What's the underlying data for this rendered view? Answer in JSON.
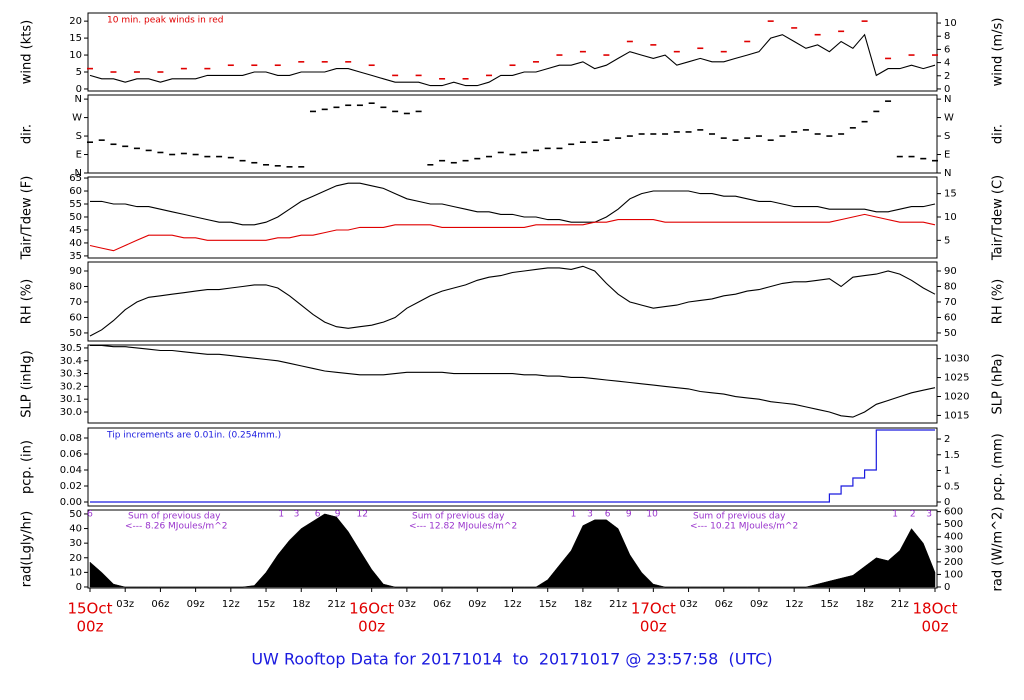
{
  "time_axis": {
    "xlim": [
      -0.17,
      72.17
    ],
    "x": [
      0,
      1,
      2,
      3,
      4,
      5,
      6,
      7,
      8,
      9,
      10,
      11,
      12,
      13,
      14,
      15,
      16,
      17,
      18,
      19,
      20,
      21,
      22,
      23,
      24,
      25,
      26,
      27,
      28,
      29,
      30,
      31,
      32,
      33,
      34,
      35,
      36,
      37,
      38,
      39,
      40,
      41,
      42,
      43,
      44,
      45,
      46,
      47,
      48,
      49,
      50,
      51,
      52,
      53,
      54,
      55,
      56,
      57,
      58,
      59,
      60,
      61,
      62,
      63,
      64,
      65,
      66,
      67,
      68,
      69,
      70,
      71,
      72
    ],
    "xticks": [
      {
        "value": 0,
        "label": "00z"
      },
      {
        "value": 3,
        "label": "03z"
      },
      {
        "value": 6,
        "label": "06z"
      },
      {
        "value": 9,
        "label": "09z"
      },
      {
        "value": 12,
        "label": "12z"
      },
      {
        "value": 15,
        "label": "15z"
      },
      {
        "value": 18,
        "label": "18z"
      },
      {
        "value": 21,
        "label": "21z"
      },
      {
        "value": 24,
        "label": "00z"
      },
      {
        "value": 27,
        "label": "03z"
      },
      {
        "value": 30,
        "label": "06z"
      },
      {
        "value": 33,
        "label": "09z"
      },
      {
        "value": 36,
        "label": "12z"
      },
      {
        "value": 39,
        "label": "15z"
      },
      {
        "value": 42,
        "label": "18z"
      },
      {
        "value": 45,
        "label": "21z"
      },
      {
        "value": 48,
        "label": "00z"
      },
      {
        "value": 51,
        "label": "03z"
      },
      {
        "value": 54,
        "label": "06z"
      },
      {
        "value": 57,
        "label": "09z"
      },
      {
        "value": 60,
        "label": "12z"
      },
      {
        "value": 63,
        "label": "15z"
      },
      {
        "value": 66,
        "label": "18z"
      },
      {
        "value": 69,
        "label": "21z"
      },
      {
        "value": 72,
        "label": "00z"
      }
    ],
    "date_labels": [
      {
        "value": 0,
        "label": "15Oct"
      },
      {
        "value": 24,
        "label": "16Oct"
      },
      {
        "value": 48,
        "label": "17Oct"
      },
      {
        "value": 72,
        "label": "18Oct"
      }
    ]
  },
  "footer": "UW Rooftop Data for 20171014  to  20171017 @ 23:57:58  (UTC)",
  "chart_data": [
    {
      "type": "line",
      "ylabel": "wind (kts)",
      "y2label": "wind (m/s)",
      "ylim": [
        -0.6,
        22.4
      ],
      "yticks": [
        0,
        5,
        10,
        15,
        20
      ],
      "y2lim": [
        -0.31,
        11.52
      ],
      "y2ticks": [
        0,
        2,
        4,
        6,
        8,
        10
      ],
      "note": "10 min. peak winds in red",
      "note_color": "#e00000",
      "series": [
        {
          "color": "#000000",
          "values": [
            4,
            3,
            3,
            2,
            3,
            3,
            2,
            3,
            3,
            3,
            4,
            4,
            4,
            4,
            5,
            5,
            4,
            4,
            5,
            5,
            5,
            6,
            6,
            5,
            4,
            3,
            2,
            2,
            2,
            1,
            1,
            2,
            1,
            1,
            2,
            4,
            4,
            5,
            5,
            6,
            7,
            7,
            8,
            6,
            7,
            9,
            11,
            10,
            9,
            10,
            7,
            8,
            9,
            8,
            8,
            9,
            10,
            11,
            15,
            16,
            14,
            12,
            13,
            11,
            14,
            12,
            16,
            4,
            6,
            6,
            7,
            6,
            7
          ]
        },
        {
          "type": "scatter",
          "color": "#e00000",
          "x": [
            0,
            2,
            4,
            6,
            8,
            10,
            12,
            14,
            16,
            18,
            20,
            22,
            24,
            26,
            28,
            30,
            32,
            34,
            36,
            38,
            40,
            42,
            44,
            46,
            48,
            50,
            52,
            54,
            56,
            58,
            60,
            62,
            64,
            66,
            68,
            70,
            72
          ],
          "values": [
            6,
            5,
            5,
            5,
            6,
            6,
            7,
            7,
            7,
            8,
            8,
            8,
            7,
            4,
            4,
            3,
            3,
            4,
            7,
            8,
            10,
            11,
            10,
            14,
            13,
            11,
            12,
            11,
            14,
            20,
            18,
            16,
            17,
            20,
            9,
            10,
            10
          ]
        }
      ]
    },
    {
      "type": "scatter",
      "ylabel": "dir.",
      "y2label": "dir.",
      "ylim": [
        0,
        380
      ],
      "yticks": [
        {
          "value": 0,
          "label": "N"
        },
        {
          "value": 90,
          "label": "E"
        },
        {
          "value": 180,
          "label": "S"
        },
        {
          "value": 270,
          "label": "W"
        },
        {
          "value": 360,
          "label": "N"
        }
      ],
      "series": [
        {
          "color": "#000000",
          "values": [
            150,
            160,
            140,
            130,
            120,
            110,
            100,
            90,
            95,
            90,
            80,
            80,
            75,
            60,
            50,
            40,
            35,
            30,
            30,
            300,
            310,
            320,
            330,
            330,
            340,
            320,
            300,
            290,
            300,
            40,
            60,
            50,
            60,
            70,
            80,
            100,
            90,
            100,
            110,
            120,
            120,
            140,
            150,
            150,
            160,
            170,
            180,
            190,
            190,
            190,
            200,
            200,
            210,
            190,
            170,
            160,
            170,
            180,
            160,
            180,
            200,
            210,
            190,
            180,
            190,
            220,
            250,
            300,
            350,
            80,
            80,
            70,
            60
          ]
        }
      ]
    },
    {
      "type": "line",
      "ylabel": "Tair/Tdew (F)",
      "y2label": "Tair/Tdew (C)",
      "ylim": [
        34.2,
        65.4
      ],
      "yticks": [
        35,
        40,
        45,
        50,
        55,
        60,
        65
      ],
      "y2lim": [
        1.22,
        18.56
      ],
      "y2ticks": [
        5,
        10,
        15
      ],
      "series": [
        {
          "color": "#000000",
          "values": [
            56,
            56,
            55,
            55,
            54,
            54,
            53,
            52,
            51,
            50,
            49,
            48,
            48,
            47,
            47,
            48,
            50,
            53,
            56,
            58,
            60,
            62,
            63,
            63,
            62,
            61,
            59,
            57,
            56,
            55,
            55,
            54,
            53,
            52,
            52,
            51,
            51,
            50,
            50,
            49,
            49,
            48,
            48,
            48,
            50,
            53,
            57,
            59,
            60,
            60,
            60,
            60,
            59,
            59,
            58,
            58,
            57,
            56,
            56,
            55,
            54,
            54,
            54,
            53,
            53,
            53,
            53,
            52,
            52,
            53,
            54,
            54,
            55
          ]
        },
        {
          "color": "#e00000",
          "values": [
            39,
            38,
            37,
            39,
            41,
            43,
            43,
            43,
            42,
            42,
            41,
            41,
            41,
            41,
            41,
            41,
            42,
            42,
            43,
            43,
            44,
            45,
            45,
            46,
            46,
            46,
            47,
            47,
            47,
            47,
            46,
            46,
            46,
            46,
            46,
            46,
            46,
            46,
            47,
            47,
            47,
            47,
            47,
            48,
            48,
            49,
            49,
            49,
            49,
            48,
            48,
            48,
            48,
            48,
            48,
            48,
            48,
            48,
            48,
            48,
            48,
            48,
            48,
            48,
            49,
            50,
            51,
            50,
            49,
            48,
            48,
            48,
            47
          ]
        }
      ]
    },
    {
      "type": "line",
      "ylabel": "RH (%)",
      "y2label": "RH (%)",
      "ylim": [
        44.8,
        95.8
      ],
      "yticks": [
        50,
        60,
        70,
        80,
        90
      ],
      "series": [
        {
          "color": "#000000",
          "values": [
            48,
            52,
            58,
            65,
            70,
            73,
            74,
            75,
            76,
            77,
            78,
            78,
            79,
            80,
            81,
            81,
            79,
            74,
            68,
            62,
            57,
            54,
            53,
            54,
            55,
            57,
            60,
            66,
            70,
            74,
            77,
            79,
            81,
            84,
            86,
            87,
            89,
            90,
            91,
            92,
            92,
            91,
            93,
            90,
            82,
            75,
            70,
            68,
            66,
            67,
            68,
            70,
            71,
            72,
            74,
            75,
            77,
            78,
            80,
            82,
            83,
            83,
            84,
            85,
            80,
            86,
            87,
            88,
            90,
            88,
            84,
            79,
            75
          ]
        }
      ]
    },
    {
      "type": "line",
      "ylabel": "SLP (inHg)",
      "y2label": "SLP (hPa)",
      "ylim": [
        29.914,
        30.523
      ],
      "yticks": [
        {
          "value": 30,
          "label": "30.0"
        },
        30.1,
        30.2,
        30.3,
        30.4,
        30.5
      ],
      "y2lim": [
        1013.0,
        1033.6
      ],
      "y2ticks": [
        1015,
        1020,
        1025,
        1030
      ],
      "series": [
        {
          "color": "#000000",
          "values": [
            30.52,
            30.52,
            30.51,
            30.51,
            30.5,
            30.49,
            30.48,
            30.48,
            30.47,
            30.46,
            30.45,
            30.45,
            30.44,
            30.43,
            30.42,
            30.41,
            30.4,
            30.38,
            30.36,
            30.34,
            30.32,
            30.31,
            30.3,
            30.29,
            30.29,
            30.29,
            30.3,
            30.31,
            30.31,
            30.31,
            30.31,
            30.3,
            30.3,
            30.3,
            30.3,
            30.3,
            30.3,
            30.29,
            30.29,
            30.28,
            30.28,
            30.27,
            30.27,
            30.26,
            30.25,
            30.24,
            30.23,
            30.22,
            30.21,
            30.2,
            30.19,
            30.18,
            30.16,
            30.15,
            30.14,
            30.12,
            30.11,
            30.1,
            30.08,
            30.07,
            30.06,
            30.04,
            30.02,
            30.0,
            29.97,
            29.96,
            30.0,
            30.06,
            30.09,
            30.12,
            30.15,
            30.17,
            30.19
          ]
        }
      ]
    },
    {
      "type": "step",
      "ylabel": "pcp. (in)",
      "y2label": "pcp. (mm)",
      "ylim": [
        -0.005,
        0.0925
      ],
      "yticks": [
        {
          "value": 0,
          "label": "0.00"
        },
        {
          "value": 0.02,
          "label": "0.02"
        },
        {
          "value": 0.04,
          "label": "0.04"
        },
        {
          "value": 0.06,
          "label": "0.06"
        },
        {
          "value": 0.08,
          "label": "0.08"
        }
      ],
      "y2lim": [
        -0.127,
        2.35
      ],
      "y2ticks": [
        0,
        0.5,
        1,
        1.5,
        2
      ],
      "note": "Tip increments are 0.01in. (0.254mm.)",
      "note_color": "#1a1adf",
      "series": [
        {
          "color": "#1a1adf",
          "values": [
            0,
            0,
            0,
            0,
            0,
            0,
            0,
            0,
            0,
            0,
            0,
            0,
            0,
            0,
            0,
            0,
            0,
            0,
            0,
            0,
            0,
            0,
            0,
            0,
            0,
            0,
            0,
            0,
            0,
            0,
            0,
            0,
            0,
            0,
            0,
            0,
            0,
            0,
            0,
            0,
            0,
            0,
            0,
            0,
            0,
            0,
            0,
            0,
            0,
            0,
            0,
            0,
            0,
            0,
            0,
            0,
            0,
            0,
            0,
            0,
            0,
            0,
            0,
            0.01,
            0.02,
            0.03,
            0.04,
            0.09,
            0.09,
            0.09,
            0.09,
            0.09,
            0.09
          ]
        }
      ]
    },
    {
      "type": "area",
      "ylabel": "rad(Lgly/hr)",
      "y2label": "rad (W/m^2)",
      "ylim": [
        -0.7,
        52.7
      ],
      "yticks": [
        0,
        10,
        20,
        30,
        40,
        50
      ],
      "y2lim": [
        -8.1,
        613
      ],
      "y2ticks": [
        0,
        100,
        200,
        300,
        400,
        500,
        600
      ],
      "series": [
        {
          "color": "#000000",
          "values": [
            17,
            10,
            2,
            0,
            0,
            0,
            0,
            0,
            0,
            0,
            0,
            0,
            0,
            0,
            1,
            10,
            22,
            32,
            40,
            45,
            50,
            48,
            38,
            25,
            12,
            2,
            0,
            0,
            0,
            0,
            0,
            0,
            0,
            0,
            0,
            0,
            0,
            0,
            0,
            5,
            15,
            25,
            42,
            46,
            46,
            40,
            22,
            10,
            2,
            0,
            0,
            0,
            0,
            0,
            0,
            0,
            0,
            0,
            0,
            0,
            0,
            0,
            2,
            4,
            6,
            8,
            14,
            20,
            18,
            25,
            40,
            30,
            10
          ]
        }
      ],
      "hour_marks": [
        {
          "value": 0,
          "label": "6"
        },
        {
          "value": 16.3,
          "label": "1"
        },
        {
          "value": 17.6,
          "label": "3"
        },
        {
          "value": 19.4,
          "label": "6"
        },
        {
          "value": 21.1,
          "label": "9"
        },
        {
          "value": 23.2,
          "label": "12"
        },
        {
          "value": 41.2,
          "label": "1"
        },
        {
          "value": 42.6,
          "label": "3"
        },
        {
          "value": 44.1,
          "label": "6"
        },
        {
          "value": 45.9,
          "label": "9"
        },
        {
          "value": 47.9,
          "label": "10"
        },
        {
          "value": 68.6,
          "label": "1"
        },
        {
          "value": 70.1,
          "label": "2"
        },
        {
          "value": 71.5,
          "label": "3"
        }
      ],
      "daily_sums": [
        {
          "title": "Sum of previous day",
          "text": "<--- 8.26 MJoules/m^2"
        },
        {
          "title": "Sum of previous day",
          "text": "<--- 12.82 MJoules/m^2"
        },
        {
          "title": "Sum of previous day",
          "text": "<--- 10.21 MJoules/m^2"
        }
      ]
    }
  ]
}
